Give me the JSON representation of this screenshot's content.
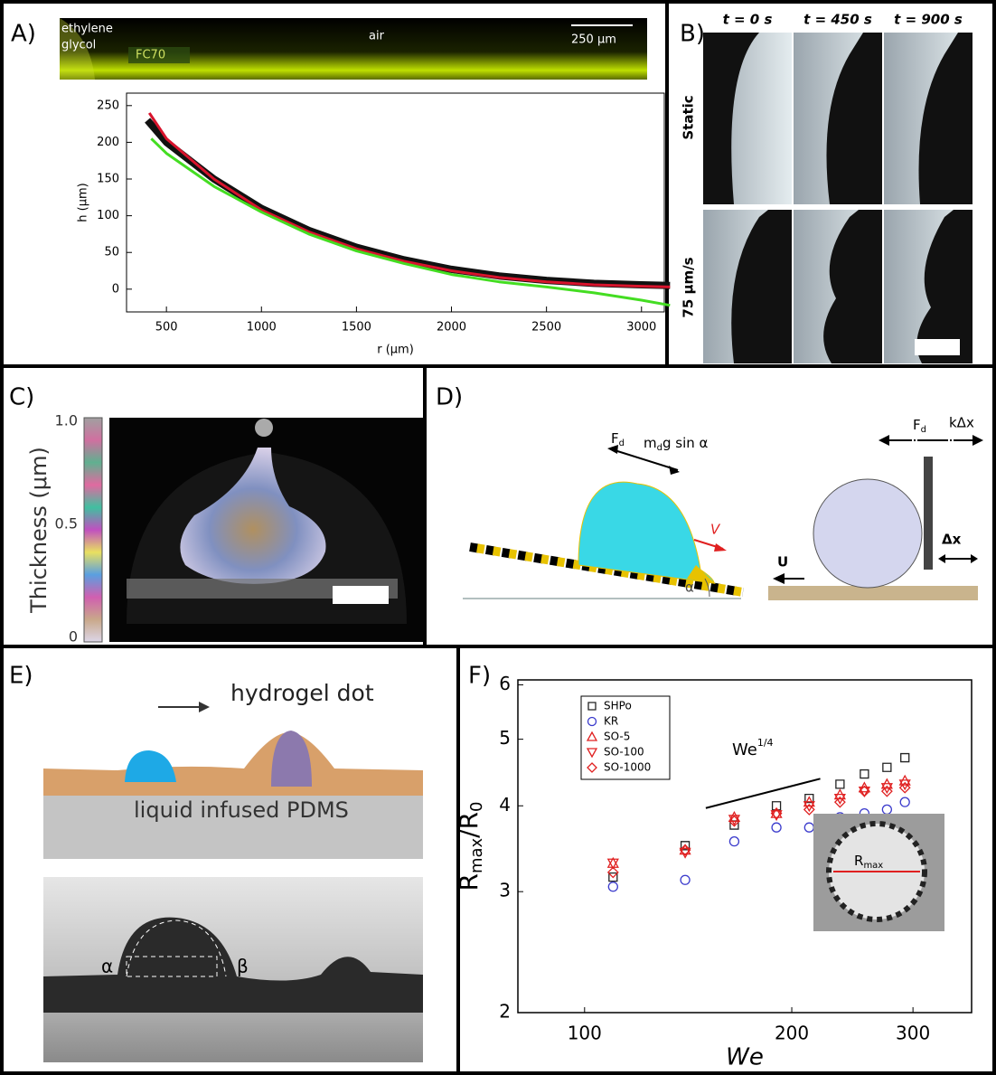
{
  "panel_labels": [
    "A)",
    "B)",
    "C)",
    "D)",
    "E)",
    "F)"
  ],
  "panel_a_image": {
    "labels": [
      "ethylene",
      "glycol",
      "FC70",
      "air",
      "250 μm"
    ]
  },
  "panel_b": {
    "times": [
      "t = 0 s",
      "t = 450 s",
      "t = 900 s"
    ],
    "rows": [
      "Static",
      "75 μm/s"
    ]
  },
  "panel_c": {
    "axis_label": "Thickness (μm)",
    "ticks": [
      "1.0",
      "0.5",
      "0"
    ]
  },
  "panel_d": {
    "labels": [
      "F",
      "d",
      "m",
      "d",
      "g sin α",
      "V",
      "α",
      "F",
      "d",
      "kΔx",
      "Δx",
      "U"
    ]
  },
  "panel_e": {
    "labels": [
      "hydrogel dot",
      "liquid infused PDMS",
      "α",
      "β"
    ]
  },
  "chart_data": [
    {
      "type": "line",
      "xlabel": "r (μm)",
      "ylabel": "h (μm)",
      "xlim": [
        290,
        3120
      ],
      "ylim": [
        -31,
        267
      ],
      "xticks": [
        500,
        1000,
        1500,
        2000,
        2500,
        3000
      ],
      "yticks": [
        0,
        50,
        100,
        150,
        200,
        250
      ],
      "series": [
        {
          "color": "#111111",
          "x": [
            400,
            500,
            750,
            1000,
            1250,
            1500,
            1750,
            2000,
            2250,
            2500,
            2750,
            3000,
            3150
          ],
          "values": [
            230,
            200,
            150,
            110,
            80,
            57,
            40,
            27,
            18,
            12,
            8,
            6,
            5
          ]
        },
        {
          "color": "#d8132c",
          "x": [
            410,
            500,
            750,
            1000,
            1250,
            1500,
            1750,
            2000,
            2250,
            2500,
            2750,
            3000,
            3150
          ],
          "values": [
            240,
            205,
            150,
            108,
            78,
            55,
            38,
            25,
            16,
            10,
            6,
            4,
            3
          ]
        },
        {
          "color": "#44dd22",
          "x": [
            420,
            500,
            750,
            1000,
            1250,
            1500,
            1750,
            2000,
            2250,
            2500,
            2750,
            3000,
            3150
          ],
          "values": [
            205,
            185,
            140,
            105,
            75,
            52,
            35,
            20,
            10,
            3,
            -5,
            -15,
            -22
          ]
        }
      ]
    },
    {
      "type": "scatter",
      "log_x": true,
      "log_y": true,
      "xlabel": "We",
      "ylabel": [
        "R",
        "max",
        "/R",
        "0"
      ],
      "xlim": [
        80,
        365
      ],
      "ylim": [
        2,
        6.1
      ],
      "xticks": [
        100,
        200,
        300
      ],
      "yticks": [
        2,
        3,
        4,
        5,
        6
      ],
      "x": [
        110,
        140,
        165,
        190,
        212,
        235,
        255,
        275,
        292
      ],
      "series": [
        {
          "name": "SHPo",
          "color": "#222222",
          "marker": "square",
          "values": [
            3.15,
            3.5,
            3.75,
            4.0,
            4.1,
            4.3,
            4.45,
            4.55,
            4.7
          ]
        },
        {
          "name": "KR",
          "color": "#3a3acc",
          "marker": "circle",
          "values": [
            3.05,
            3.12,
            3.55,
            3.72,
            3.72,
            3.85,
            3.9,
            3.95,
            4.05
          ]
        },
        {
          "name": "SO-5",
          "color": "#e02020",
          "marker": "triangle-up",
          "values": [
            3.3,
            3.45,
            3.85,
            3.9,
            4.05,
            4.15,
            4.25,
            4.3,
            4.35
          ]
        },
        {
          "name": "SO-100",
          "color": "#e02020",
          "marker": "triangle-down",
          "values": [
            3.3,
            3.42,
            3.82,
            3.88,
            4.0,
            4.1,
            4.2,
            4.25,
            4.3
          ]
        },
        {
          "name": "SO-1000",
          "color": "#e02020",
          "marker": "diamond",
          "values": [
            3.2,
            3.45,
            3.8,
            3.9,
            3.95,
            4.05,
            4.2,
            4.2,
            4.25
          ]
        }
      ],
      "slope_annotation": {
        "text": [
          "We",
          "1/4"
        ],
        "x": [
          150,
          220
        ],
        "y": [
          3.97,
          4.38
        ]
      },
      "inset_label": [
        "R",
        "max"
      ]
    }
  ]
}
